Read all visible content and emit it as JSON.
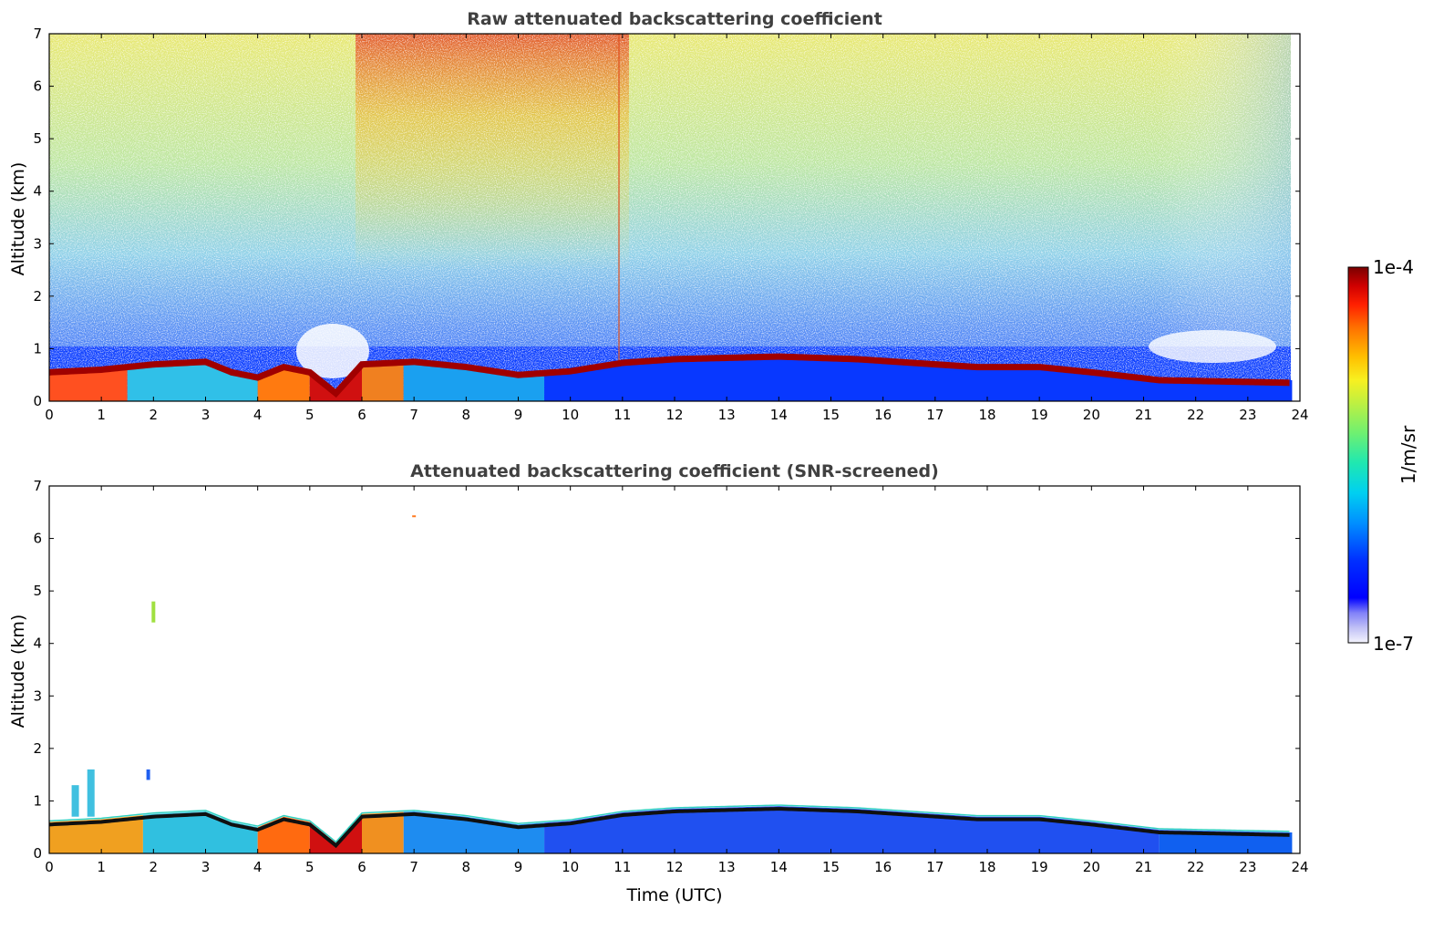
{
  "chart_data": [
    {
      "type": "heatmap",
      "title": "Raw attenuated backscattering coefficient",
      "xlabel": "",
      "ylabel": "Altitude (km)",
      "xlim": [
        0,
        24
      ],
      "ylim": [
        0,
        7
      ],
      "x_ticks": [
        "0",
        "1",
        "2",
        "3",
        "4",
        "5",
        "6",
        "7",
        "8",
        "9",
        "10",
        "11",
        "12",
        "13",
        "14",
        "15",
        "16",
        "17",
        "18",
        "19",
        "20",
        "21",
        "22",
        "23",
        "24"
      ],
      "y_ticks": [
        "0",
        "1",
        "2",
        "3",
        "4",
        "5",
        "6",
        "7"
      ],
      "layer_top_km": [
        [
          0,
          0.6
        ],
        [
          1,
          0.65
        ],
        [
          2,
          0.75
        ],
        [
          3,
          0.8
        ],
        [
          3.5,
          0.6
        ],
        [
          4,
          0.5
        ],
        [
          4.5,
          0.7
        ],
        [
          5,
          0.6
        ],
        [
          5.5,
          0.2
        ],
        [
          6,
          0.75
        ],
        [
          7,
          0.8
        ],
        [
          8,
          0.7
        ],
        [
          9,
          0.55
        ],
        [
          10,
          0.62
        ],
        [
          11,
          0.78
        ],
        [
          12,
          0.85
        ],
        [
          14,
          0.9
        ],
        [
          15.5,
          0.85
        ],
        [
          17.8,
          0.7
        ],
        [
          19,
          0.7
        ],
        [
          20,
          0.6
        ],
        [
          21.3,
          0.45
        ],
        [
          23.8,
          0.4
        ]
      ],
      "noise_regions": [
        {
          "x": [
            0,
            24
          ],
          "y_from_km": 1.0,
          "level": "high (yellow-green)"
        },
        {
          "x": [
            6,
            11
          ],
          "y_from_km": 4.0,
          "level": "very high (red)"
        }
      ]
    },
    {
      "type": "heatmap",
      "title": "Attenuated backscattering coefficient (SNR-screened)",
      "xlabel": "Time (UTC)",
      "ylabel": "Altitude (km)",
      "xlim": [
        0,
        24
      ],
      "ylim": [
        0,
        7
      ],
      "x_ticks": [
        "0",
        "1",
        "2",
        "3",
        "4",
        "5",
        "6",
        "7",
        "8",
        "9",
        "10",
        "11",
        "12",
        "13",
        "14",
        "15",
        "16",
        "17",
        "18",
        "19",
        "20",
        "21",
        "22",
        "23",
        "24"
      ],
      "y_ticks": [
        "0",
        "1",
        "2",
        "3",
        "4",
        "5",
        "6",
        "7"
      ],
      "isolated_features": [
        {
          "x": 2.0,
          "y_km": [
            4.4,
            4.8
          ],
          "color": "yellow-green"
        },
        {
          "x": 7.0,
          "y_km": [
            6.42,
            6.44
          ],
          "color": "orange"
        },
        {
          "x": 1.9,
          "y_km": [
            1.4,
            1.6
          ],
          "color": "blue"
        }
      ]
    }
  ],
  "colorbar": {
    "max_label": "1e-4",
    "min_label": "1e-7",
    "unit_label": "1/m/sr",
    "colormap": [
      "#eeeefc",
      "#c8c8f4",
      "#9c9cf0",
      "#3c3cff",
      "#0000ff",
      "#0040ff",
      "#0080ff",
      "#00c0ff",
      "#00e0e0",
      "#20e8a0",
      "#80f060",
      "#c0f040",
      "#f0f020",
      "#ffc000",
      "#ff8000",
      "#ff3000",
      "#e00000",
      "#a00000",
      "#700000"
    ]
  }
}
